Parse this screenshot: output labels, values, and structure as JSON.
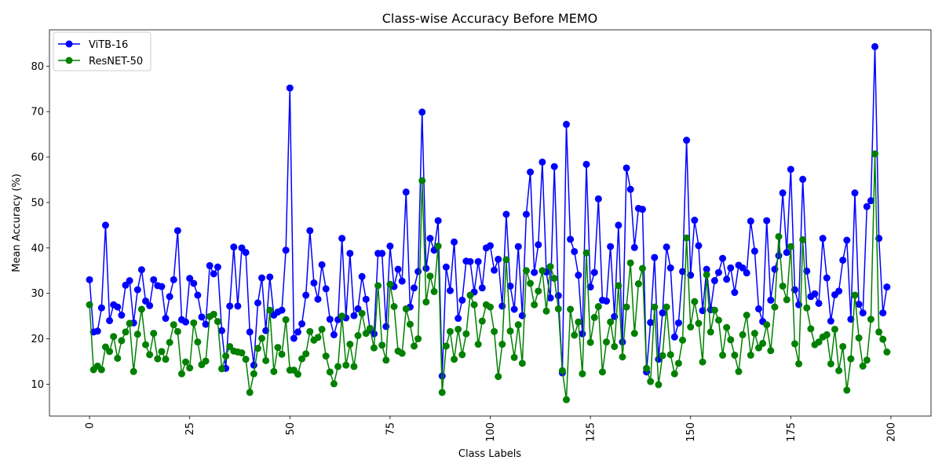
{
  "chart_data": {
    "type": "line",
    "title": "Class-wise Accuracy Before MEMO",
    "xlabel": "Class Labels",
    "ylabel": "Mean Accuracy (%)",
    "xlim": [
      -10,
      210
    ],
    "ylim": [
      3,
      88
    ],
    "xticks": [
      0,
      25,
      50,
      75,
      100,
      125,
      150,
      175,
      200
    ],
    "yticks": [
      10,
      20,
      30,
      40,
      50,
      60,
      70,
      80
    ],
    "legend_position": "top-left",
    "series": [
      {
        "name": "ViTB-16",
        "color": "#0000ff",
        "values": [
          33,
          21.5,
          21.7,
          26.8,
          45,
          24,
          27.5,
          27,
          25.2,
          31.8,
          32.8,
          23.5,
          30.8,
          35.2,
          28.3,
          27.3,
          33,
          31.7,
          31.5,
          24.5,
          29.3,
          33,
          43.8,
          24.2,
          23.7,
          33.3,
          32.2,
          29.6,
          24.8,
          23.2,
          36.1,
          34.3,
          35.8,
          21.8,
          13.5,
          27.2,
          40.2,
          27.2,
          40,
          39,
          21.5,
          14.2,
          27.9,
          33.4,
          21.8,
          33.6,
          25.2,
          25.9,
          26.3,
          39.5,
          75.2,
          20.1,
          21.5,
          23.3,
          29.6,
          43.8,
          32.3,
          28.7,
          36.3,
          31,
          24.3,
          20.9,
          24.2,
          42.1,
          24.6,
          38.8,
          25.1,
          26.6,
          33.7,
          28.7,
          21.9,
          21.1,
          38.8,
          38.8,
          22.7,
          40.4,
          31.5,
          35.3,
          32.7,
          52.3,
          27,
          31.2,
          34.8,
          69.9,
          35.5,
          42.1,
          39.5,
          46,
          11.8,
          35.8,
          30.6,
          41.3,
          24.5,
          28.5,
          37.1,
          37,
          30.3,
          37,
          31.2,
          40,
          40.5,
          35.1,
          37.5,
          27.2,
          47.4,
          31.6,
          26.5,
          40.3,
          25.1,
          47.4,
          56.7,
          34.6,
          40.7,
          58.9,
          34.7,
          29,
          57.9,
          29.5,
          12.5,
          67.2,
          41.9,
          39.2,
          34,
          21.1,
          58.4,
          31.4,
          34.6,
          50.8,
          28.5,
          28.3,
          40.3,
          24.9,
          45,
          19.3,
          57.6,
          52.9,
          40.1,
          48.7,
          48.5,
          12.7,
          23.6,
          37.9,
          15.5,
          25.7,
          40.2,
          35.6,
          20.4,
          23.5,
          34.8,
          63.7,
          34,
          46.1,
          40.5,
          26.2,
          35.3,
          26.4,
          32.8,
          34.6,
          37.7,
          33.1,
          35.6,
          30.2,
          36.2,
          35.6,
          34.5,
          45.9,
          39.3,
          26.6,
          23.8,
          46,
          28.5,
          35.3,
          38.3,
          52.1,
          39,
          57.3,
          30.8,
          27.5,
          55.1,
          34.9,
          29.3,
          29.9,
          27.8,
          42.1,
          33.4,
          23.9,
          29.7,
          30.5,
          37.3,
          41.7,
          24.3,
          52.1,
          27.6,
          25.7,
          49.1,
          50.4,
          84.3,
          42.1,
          25.7,
          31.4
        ]
      },
      {
        "name": "ResNET-50",
        "color": "#008000",
        "values": [
          27.5,
          13.2,
          14,
          13.2,
          18.2,
          17.2,
          20.5,
          15.7,
          19.6,
          21.5,
          23.4,
          12.8,
          21,
          26.5,
          18.7,
          16.5,
          21.2,
          15.6,
          17.2,
          15.5,
          19.2,
          23.1,
          21.6,
          12.3,
          14.9,
          13.6,
          23.5,
          19.3,
          14.3,
          15.1,
          24.9,
          25.4,
          23.8,
          13.4,
          16.2,
          18.3,
          17.3,
          17.1,
          16.9,
          15.5,
          8.2,
          12.3,
          17.9,
          20.1,
          15.2,
          26.3,
          12.8,
          18.1,
          16.6,
          24.2,
          13.1,
          13.1,
          12.2,
          15.6,
          16.7,
          21.6,
          19.7,
          20.3,
          22.1,
          16.2,
          12.7,
          10.1,
          13.9,
          25,
          14.2,
          18.8,
          13.9,
          20.7,
          25.6,
          21.2,
          22.3,
          18,
          31.7,
          18.6,
          15.3,
          32,
          27.1,
          17.3,
          16.8,
          26.6,
          23.2,
          18.4,
          20,
          54.8,
          28.1,
          33.8,
          30.4,
          40.4,
          8.2,
          18.4,
          21.6,
          15.5,
          22.1,
          16.5,
          21.1,
          29.6,
          27.5,
          18.8,
          23.9,
          27.5,
          27,
          21.6,
          11.7,
          18.8,
          37.4,
          21.7,
          15.9,
          23.1,
          14.6,
          35,
          32.2,
          27.5,
          30.5,
          35,
          26.1,
          35.9,
          33.3,
          26.6,
          13,
          6.6,
          26.5,
          20.8,
          23.7,
          12.3,
          38.9,
          19.2,
          24.7,
          27.1,
          12.7,
          19.3,
          23.7,
          18.3,
          31.7,
          16,
          27,
          36.7,
          21.2,
          32.1,
          35.5,
          13.5,
          10.6,
          27,
          9.9,
          16.3,
          27,
          16.5,
          12.3,
          14.6,
          19.7,
          42.2,
          22.6,
          28.2,
          23.4,
          14.9,
          34.1,
          21.5,
          26.3,
          24.1,
          16.4,
          22.5,
          19.8,
          16.4,
          12.8,
          20.9,
          25.2,
          16.4,
          21.2,
          18,
          19,
          23.1,
          17.4,
          27,
          42.5,
          31.6,
          28.6,
          40.3,
          18.9,
          14.5,
          41.8,
          26.8,
          22.2,
          18.7,
          19.3,
          20.4,
          20.9,
          14.5,
          22.1,
          13,
          18.3,
          8.7,
          15.6,
          29.6,
          20.2,
          14,
          15.3,
          24.3,
          60.7,
          21.5,
          19.9,
          17.1
        ]
      }
    ]
  }
}
